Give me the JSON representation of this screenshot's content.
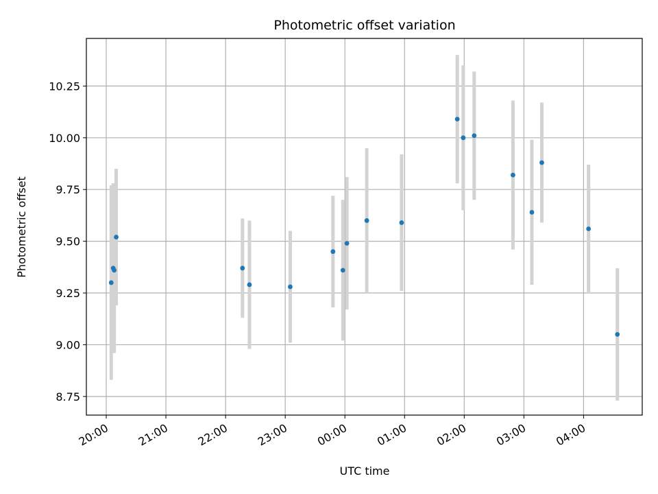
{
  "chart_data": {
    "type": "scatter",
    "title": "Photometric offset variation",
    "xlabel": "UTC time",
    "ylabel": "Photometric offset",
    "x_ticks": [
      "20:00",
      "21:00",
      "22:00",
      "23:00",
      "00:00",
      "01:00",
      "02:00",
      "03:00",
      "04:00"
    ],
    "y_ticks": [
      "8.75",
      "9.00",
      "9.25",
      "9.50",
      "9.75",
      "10.00",
      "10.25"
    ],
    "x_tick_times": [
      "20:00",
      "21:00",
      "22:00",
      "23:00",
      "00:00",
      "01:00",
      "02:00",
      "03:00",
      "04:00"
    ],
    "y_tick_values": [
      8.75,
      9.0,
      9.25,
      9.5,
      9.75,
      10.0,
      10.25
    ],
    "xlim": [
      "19:40",
      "04:59"
    ],
    "ylim": [
      8.66,
      10.48
    ],
    "grid": true,
    "colors": {
      "points": "#1f77b4",
      "errorbars": "#d3d3d3",
      "grid": "#b0b0b0"
    },
    "points": [
      {
        "t": "20:05",
        "y": 9.3,
        "err": 0.47
      },
      {
        "t": "20:07",
        "y": 9.37,
        "err": 0.41
      },
      {
        "t": "20:08",
        "y": 9.36,
        "err": 0.4
      },
      {
        "t": "20:10",
        "y": 9.52,
        "err": 0.33
      },
      {
        "t": "22:17",
        "y": 9.37,
        "err": 0.24
      },
      {
        "t": "22:24",
        "y": 9.29,
        "err": 0.31
      },
      {
        "t": "23:05",
        "y": 9.28,
        "err": 0.27
      },
      {
        "t": "23:48",
        "y": 9.45,
        "err": 0.27
      },
      {
        "t": "23:58",
        "y": 9.36,
        "err": 0.34
      },
      {
        "t": "00:02",
        "y": 9.49,
        "err": 0.32
      },
      {
        "t": "00:22",
        "y": 9.6,
        "err": 0.35
      },
      {
        "t": "00:57",
        "y": 9.59,
        "err": 0.33
      },
      {
        "t": "01:53",
        "y": 10.09,
        "err": 0.31
      },
      {
        "t": "01:59",
        "y": 10.0,
        "err": 0.35
      },
      {
        "t": "02:10",
        "y": 10.01,
        "err": 0.31
      },
      {
        "t": "02:49",
        "y": 9.82,
        "err": 0.36
      },
      {
        "t": "03:08",
        "y": 9.64,
        "err": 0.35
      },
      {
        "t": "03:18",
        "y": 9.88,
        "err": 0.29
      },
      {
        "t": "04:05",
        "y": 9.56,
        "err": 0.31
      },
      {
        "t": "04:34",
        "y": 9.05,
        "err": 0.32
      }
    ]
  }
}
